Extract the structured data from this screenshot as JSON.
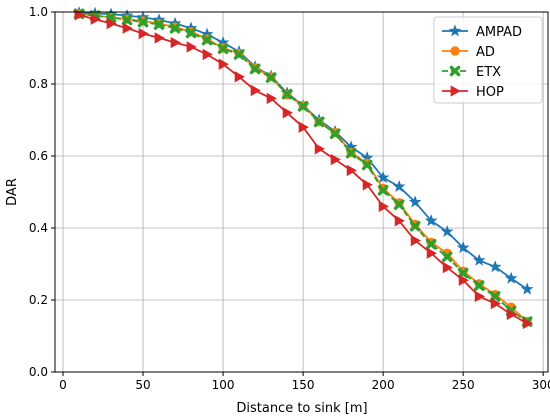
{
  "chart_data": {
    "type": "line",
    "title": "",
    "xlabel": "Distance to sink [m]",
    "ylabel": "DAR",
    "xlim": [
      -5,
      303
    ],
    "ylim": [
      0,
      1
    ],
    "xticks": [
      0,
      50,
      100,
      150,
      200,
      250,
      300
    ],
    "yticks": [
      0.0,
      0.2,
      0.4,
      0.6,
      0.8,
      1.0
    ],
    "xtick_labels": [
      "0",
      "50",
      "100",
      "150",
      "200",
      "250",
      "300"
    ],
    "ytick_labels": [
      "0.0",
      "0.2",
      "0.4",
      "0.6",
      "0.8",
      "1.0"
    ],
    "grid": true,
    "legend_position": "top-right",
    "x": [
      10,
      20,
      30,
      40,
      50,
      60,
      70,
      80,
      90,
      100,
      110,
      120,
      130,
      140,
      150,
      160,
      170,
      180,
      190,
      200,
      210,
      220,
      230,
      240,
      250,
      260,
      270,
      280,
      290
    ],
    "series": [
      {
        "name": "AMPAD",
        "color": "#1f77b4",
        "marker": "star",
        "dash": "solid",
        "values": [
          0.998,
          0.996,
          0.994,
          0.99,
          0.985,
          0.978,
          0.968,
          0.955,
          0.938,
          0.915,
          0.89,
          0.848,
          0.822,
          0.775,
          0.74,
          0.7,
          0.668,
          0.625,
          0.595,
          0.54,
          0.515,
          0.472,
          0.42,
          0.39,
          0.345,
          0.31,
          0.292,
          0.26,
          0.23
        ]
      },
      {
        "name": "AD",
        "color": "#ff7f0e",
        "marker": "circle",
        "dash": "solid",
        "values": [
          0.995,
          0.99,
          0.985,
          0.98,
          0.975,
          0.968,
          0.958,
          0.945,
          0.925,
          0.9,
          0.885,
          0.845,
          0.82,
          0.77,
          0.74,
          0.695,
          0.665,
          0.61,
          0.58,
          0.51,
          0.47,
          0.41,
          0.36,
          0.33,
          0.28,
          0.245,
          0.215,
          0.18,
          0.14
        ]
      },
      {
        "name": "ETX",
        "color": "#2ca02c",
        "marker": "x",
        "dash": "dashed",
        "values": [
          0.995,
          0.99,
          0.985,
          0.978,
          0.972,
          0.965,
          0.955,
          0.942,
          0.922,
          0.898,
          0.882,
          0.842,
          0.818,
          0.772,
          0.738,
          0.695,
          0.662,
          0.608,
          0.575,
          0.505,
          0.465,
          0.405,
          0.355,
          0.32,
          0.275,
          0.24,
          0.21,
          0.17,
          0.14
        ]
      },
      {
        "name": "HOP",
        "color": "#d62728",
        "marker": "triangle-right",
        "dash": "solid",
        "values": [
          0.992,
          0.98,
          0.968,
          0.955,
          0.94,
          0.928,
          0.915,
          0.903,
          0.882,
          0.855,
          0.82,
          0.782,
          0.76,
          0.72,
          0.68,
          0.62,
          0.59,
          0.56,
          0.52,
          0.46,
          0.42,
          0.365,
          0.33,
          0.29,
          0.255,
          0.21,
          0.19,
          0.16,
          0.135
        ]
      }
    ]
  }
}
